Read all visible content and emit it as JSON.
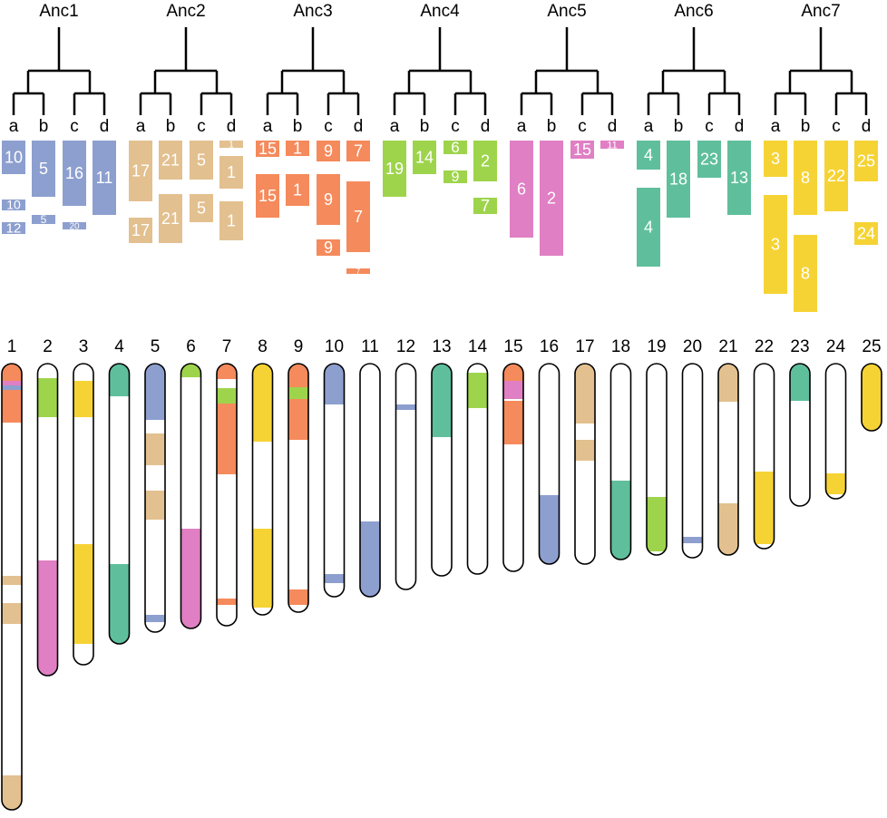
{
  "ancestors": [
    {
      "name": "Anc1",
      "color": "#8d9fcf",
      "leaves": [
        "a",
        "b",
        "c",
        "d"
      ],
      "blocks": [
        [
          "10",
          "10",
          "12"
        ],
        [
          "5",
          "5"
        ],
        [
          "16",
          "20"
        ],
        [
          "11"
        ]
      ]
    },
    {
      "name": "Anc2",
      "color": "#e3c08f",
      "leaves": [
        "a",
        "b",
        "c",
        "d"
      ],
      "blocks": [
        [
          "17",
          "17"
        ],
        [
          "21",
          "21"
        ],
        [
          "5",
          "5"
        ],
        [
          "1",
          "1",
          "1"
        ]
      ]
    },
    {
      "name": "Anc3",
      "color": "#f58a5c",
      "leaves": [
        "a",
        "b",
        "c",
        "d"
      ],
      "blocks": [
        [
          "15",
          "15"
        ],
        [
          "1",
          "1"
        ],
        [
          "9",
          "9",
          "9"
        ],
        [
          "7",
          "7",
          "7"
        ]
      ]
    },
    {
      "name": "Anc4",
      "color": "#9ed44b",
      "leaves": [
        "a",
        "b",
        "c",
        "d"
      ],
      "blocks": [
        [
          "19"
        ],
        [
          "14"
        ],
        [
          "6",
          "9"
        ],
        [
          "2",
          "7"
        ]
      ]
    },
    {
      "name": "Anc5",
      "color": "#e07fc4",
      "leaves": [
        "a",
        "b",
        "c",
        "d"
      ],
      "blocks": [
        [
          "6"
        ],
        [
          "2"
        ],
        [
          "15"
        ],
        [
          "11"
        ]
      ]
    },
    {
      "name": "Anc6",
      "color": "#5fbf9c",
      "leaves": [
        "a",
        "b",
        "c",
        "d"
      ],
      "blocks": [
        [
          "4",
          "4"
        ],
        [
          "18"
        ],
        [
          "23"
        ],
        [
          "13"
        ]
      ]
    },
    {
      "name": "Anc7",
      "color": "#f6d335",
      "leaves": [
        "a",
        "b",
        "c",
        "d"
      ],
      "blocks": [
        [
          "3",
          "3"
        ],
        [
          "8",
          "8"
        ],
        [
          "22"
        ],
        [
          "25",
          "24"
        ]
      ]
    }
  ],
  "chromosomes": [
    "1",
    "2",
    "3",
    "4",
    "5",
    "6",
    "7",
    "8",
    "9",
    "10",
    "11",
    "12",
    "13",
    "14",
    "15",
    "16",
    "17",
    "18",
    "19",
    "20",
    "21",
    "22",
    "23",
    "24",
    "25"
  ]
}
